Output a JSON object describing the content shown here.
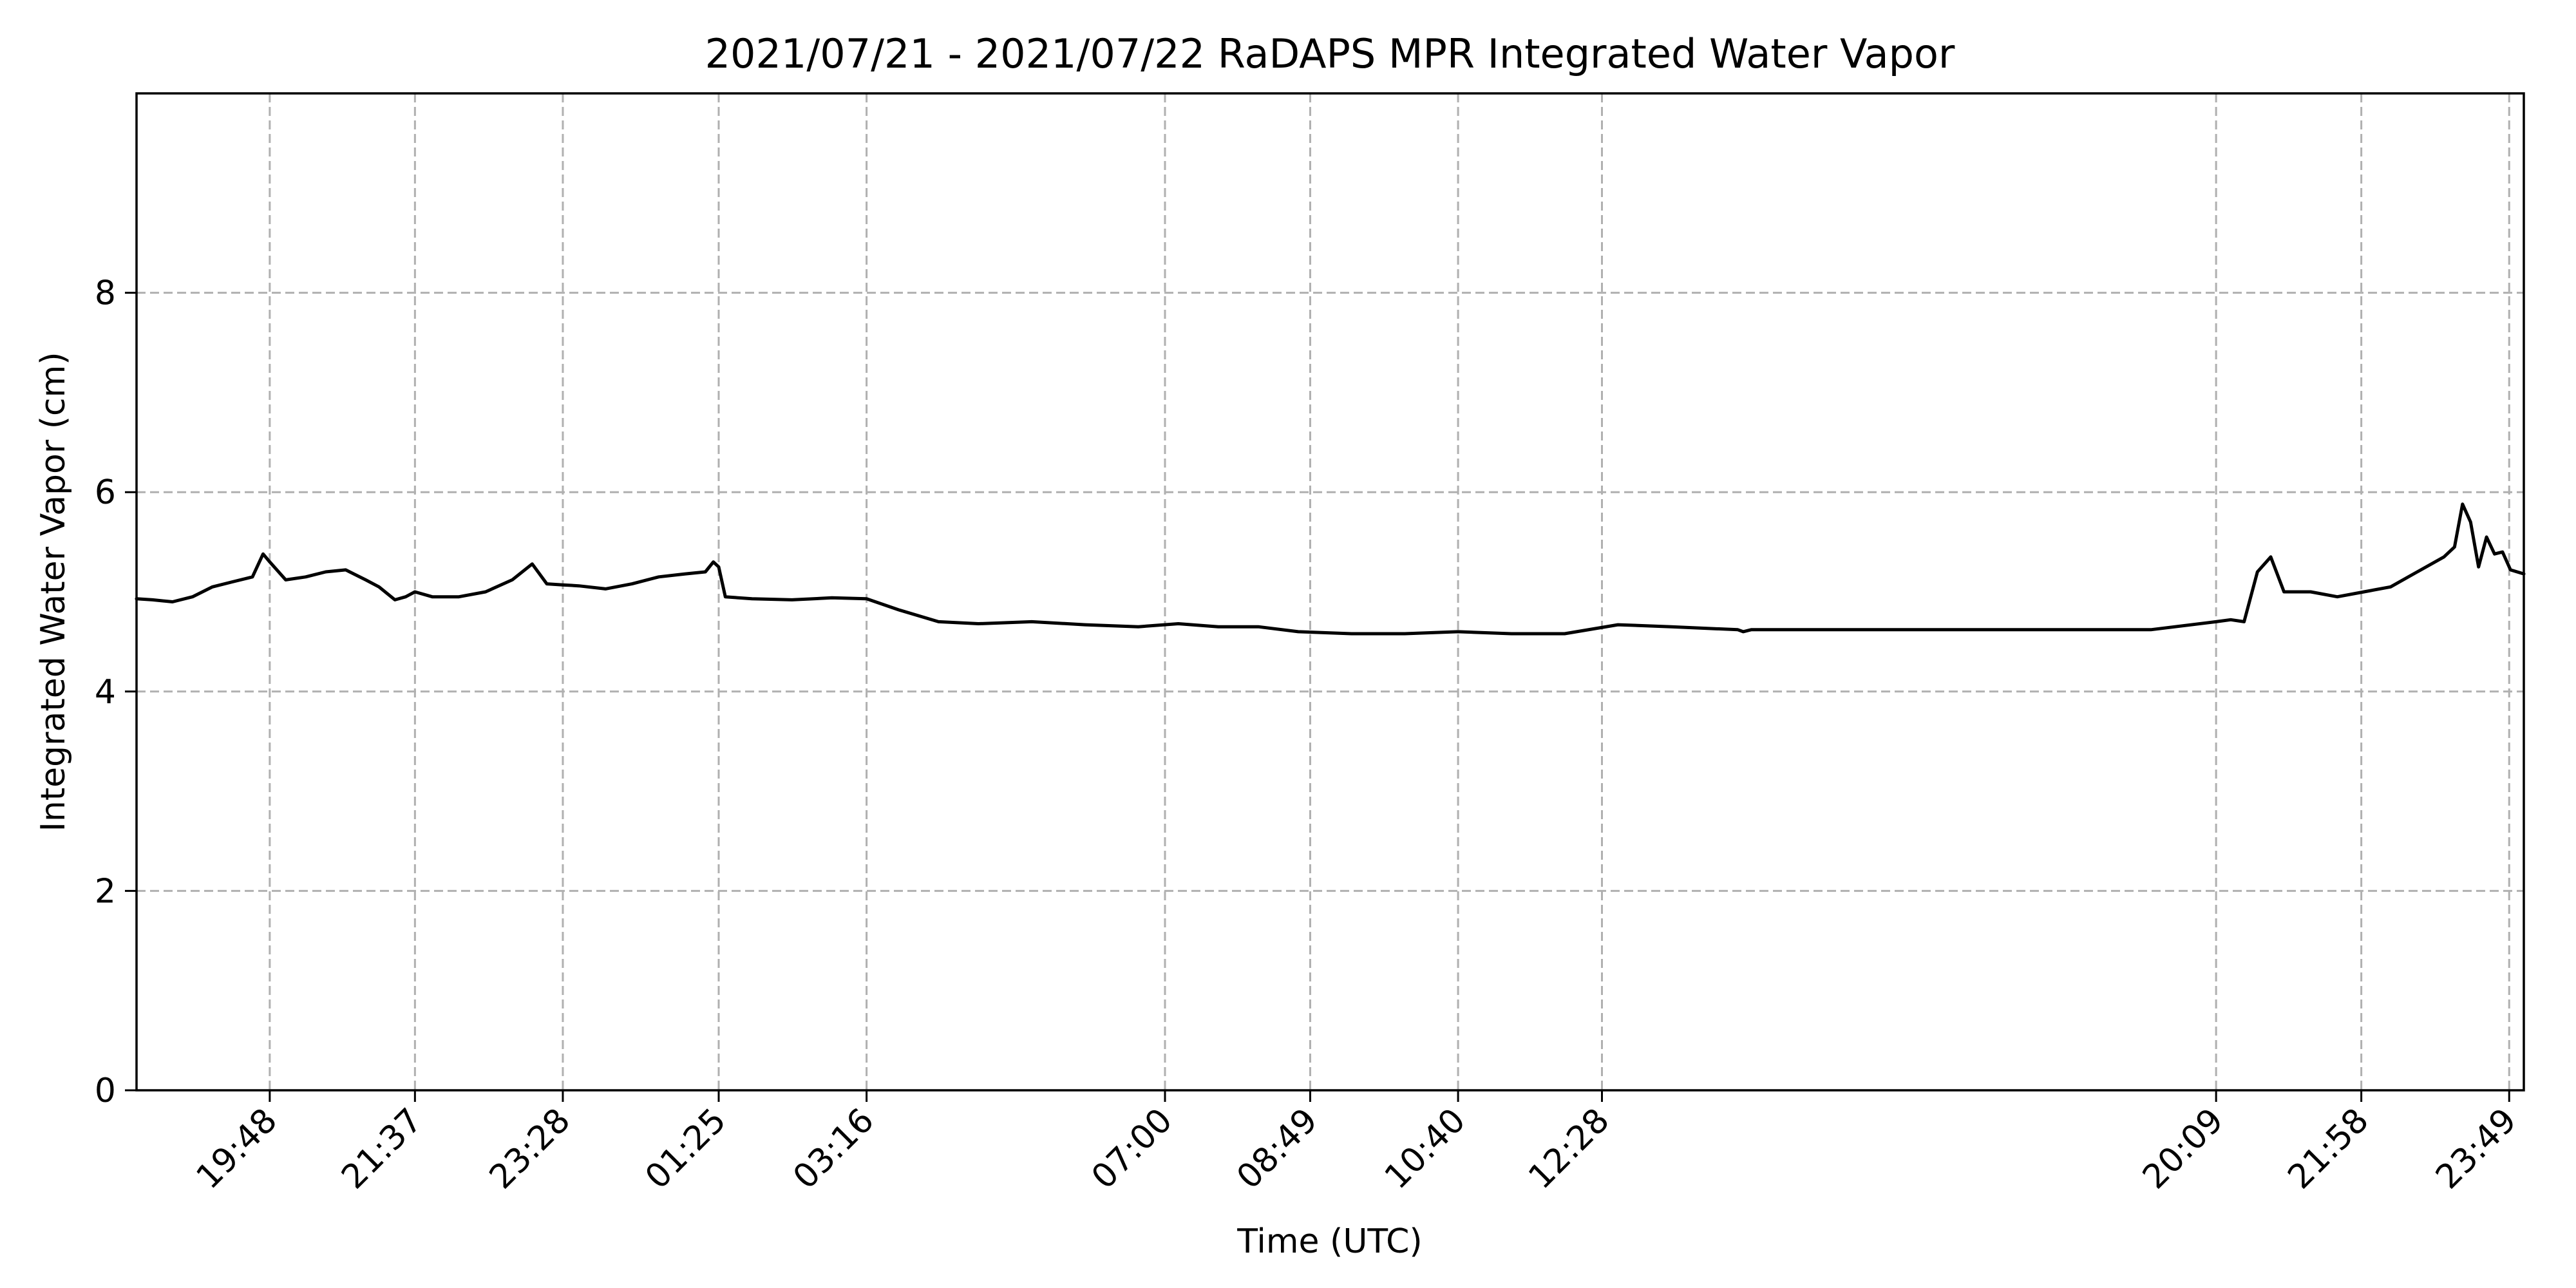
{
  "chart_data": {
    "type": "line",
    "title": "2021/07/21 - 2021/07/22 RaDAPS MPR Integrated Water Vapor",
    "xlabel": "Time (UTC)",
    "ylabel": "Integrated Water Vapor (cm)",
    "ylim": [
      0,
      10
    ],
    "grid": true,
    "y_ticks": [
      0,
      2,
      4,
      6,
      8
    ],
    "x_ticks": [
      "19:48",
      "21:37",
      "23:28",
      "01:25",
      "03:16",
      "07:00",
      "08:49",
      "10:40",
      "12:28",
      "20:09",
      "21:58",
      "23:49"
    ],
    "x_tick_minutes": [
      1188,
      1297,
      1408,
      1525,
      1636,
      1860,
      1969,
      2080,
      2188,
      2649,
      2758,
      2869
    ],
    "xlim_minutes": [
      1088,
      2880
    ],
    "series": [
      {
        "color": "#000000",
        "x_minutes": [
          1088,
          1100,
          1115,
          1130,
          1145,
          1160,
          1175,
          1183,
          1188,
          1200,
          1215,
          1230,
          1245,
          1260,
          1270,
          1282,
          1290,
          1297,
          1310,
          1330,
          1350,
          1370,
          1385,
          1396,
          1408,
          1420,
          1440,
          1460,
          1480,
          1500,
          1515,
          1521,
          1525,
          1530,
          1550,
          1580,
          1610,
          1636,
          1660,
          1690,
          1720,
          1760,
          1800,
          1840,
          1870,
          1900,
          1930,
          1960,
          2000,
          2040,
          2080,
          2120,
          2160,
          2200,
          2240,
          2290,
          2294,
          2300,
          2400,
          2500,
          2600,
          2649,
          2660,
          2670,
          2680,
          2690,
          2700,
          2720,
          2740,
          2760,
          2780,
          2800,
          2820,
          2828,
          2834,
          2840,
          2846,
          2852,
          2858,
          2864,
          2870,
          2880
        ],
        "values": [
          4.93,
          4.92,
          4.9,
          4.95,
          5.05,
          5.1,
          5.15,
          5.38,
          5.3,
          5.12,
          5.15,
          5.2,
          5.22,
          5.12,
          5.05,
          4.92,
          4.95,
          5.0,
          4.95,
          4.95,
          5.0,
          5.12,
          5.28,
          5.08,
          5.07,
          5.06,
          5.03,
          5.08,
          5.15,
          5.18,
          5.2,
          5.3,
          5.25,
          4.95,
          4.93,
          4.92,
          4.94,
          4.93,
          4.82,
          4.7,
          4.68,
          4.7,
          4.67,
          4.65,
          4.68,
          4.65,
          4.65,
          4.6,
          4.58,
          4.58,
          4.6,
          4.58,
          4.58,
          4.67,
          4.65,
          4.62,
          4.6,
          4.62,
          4.62,
          4.62,
          4.62,
          4.7,
          4.72,
          4.7,
          5.2,
          5.35,
          5.0,
          5.0,
          4.95,
          5.0,
          5.05,
          5.2,
          5.35,
          5.45,
          5.88,
          5.7,
          5.25,
          5.55,
          5.38,
          5.4,
          5.22,
          5.18
        ]
      }
    ]
  }
}
